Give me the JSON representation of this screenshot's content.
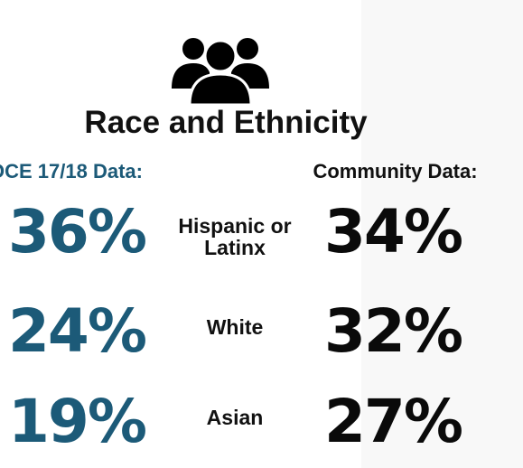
{
  "header": {
    "title": "Race and Ethnicity",
    "left_heading": "OCE 17/18 Data:",
    "right_heading": "Community Data:"
  },
  "rows": [
    {
      "left": "36%",
      "label": "Hispanic or Latinx",
      "right": "34%"
    },
    {
      "left": "24%",
      "label": "White",
      "right": "32%"
    },
    {
      "left": "19%",
      "label": "Asian",
      "right": "27%"
    }
  ]
}
